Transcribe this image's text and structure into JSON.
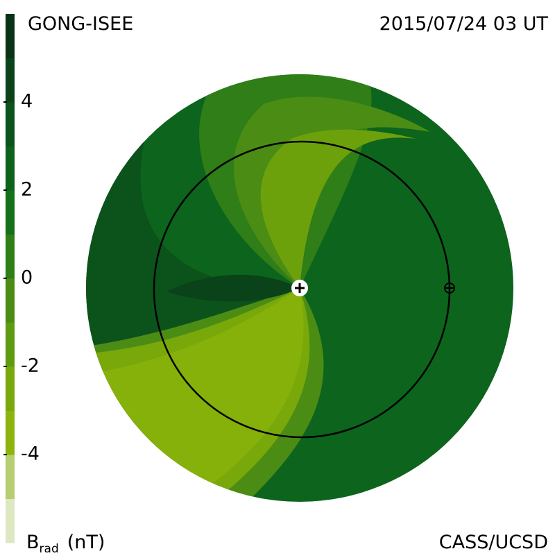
{
  "chart_data": {
    "type": "colorbar",
    "title": "GONG-ISEE",
    "date": "2015/07/24 03 UT",
    "credit": "CASS/UCSD",
    "label": "B",
    "label_sub": "rad",
    "label_unit": "(nT)",
    "ylim": [
      -6,
      6
    ],
    "yticks": [
      -4,
      -2,
      0,
      2,
      4
    ],
    "colors": [
      "#dde8c2",
      "#b6cd70",
      "#8cb40c",
      "#79a80a",
      "#5f9b10",
      "#4b8d14",
      "#2f7e18",
      "#167019",
      "#0d621c",
      "#0b531b",
      "#0a4319",
      "#0a3216"
    ]
  }
}
